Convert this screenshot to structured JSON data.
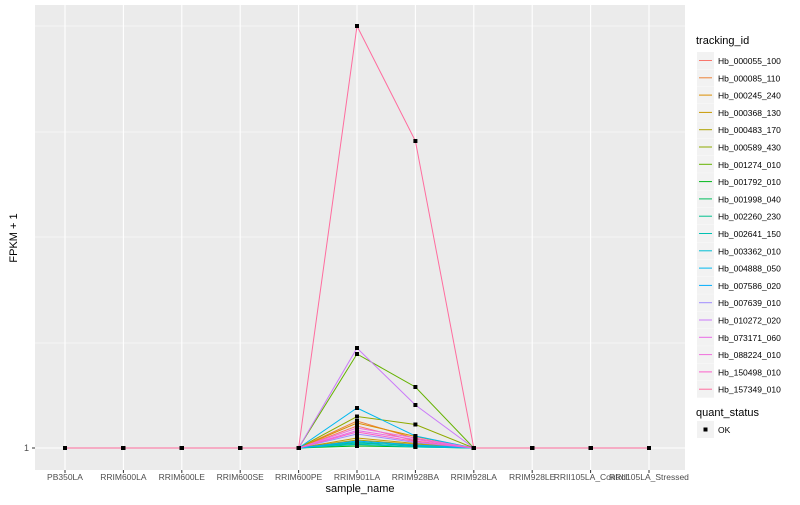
{
  "chart_data": {
    "type": "line",
    "title": "",
    "xlabel": "sample_name",
    "ylabel": "FPKM + 1",
    "y_tick_labels": [
      "1"
    ],
    "ylim": [
      1,
      880
    ],
    "grid": true,
    "legend_position": "right",
    "categories": [
      "PB350LA",
      "RRIM600LA",
      "RRIM600LE",
      "RRIM600SE",
      "RRIM600PE",
      "RRIM901LA",
      "RRIM928BA",
      "RRIM928LA",
      "RRIM928LE",
      "RRII105LA_Control",
      "RRII105LA_Stressed"
    ],
    "legend_title": "tracking_id",
    "series": [
      {
        "name": "Hb_000055_100",
        "color": "#F8766D",
        "values": [
          1,
          1,
          1,
          1,
          1,
          45,
          15,
          1,
          1,
          1,
          1
        ]
      },
      {
        "name": "Hb_000085_110",
        "color": "#EC8239",
        "values": [
          1,
          1,
          1,
          1,
          1,
          55,
          20,
          1,
          1,
          1,
          1
        ]
      },
      {
        "name": "Hb_000245_240",
        "color": "#DB8E00",
        "values": [
          1,
          1,
          1,
          1,
          1,
          51,
          24,
          1,
          1,
          1,
          1
        ]
      },
      {
        "name": "Hb_000368_130",
        "color": "#C79800",
        "values": [
          1,
          1,
          1,
          1,
          1,
          21,
          10,
          1,
          1,
          1,
          1
        ]
      },
      {
        "name": "Hb_000483_170",
        "color": "#AEA200",
        "values": [
          1,
          1,
          1,
          1,
          1,
          17,
          8,
          1,
          1,
          1,
          1
        ]
      },
      {
        "name": "Hb_000589_430",
        "color": "#8FAA00",
        "values": [
          1,
          1,
          1,
          1,
          1,
          64,
          48,
          1,
          1,
          1,
          1
        ]
      },
      {
        "name": "Hb_001274_010",
        "color": "#64B200",
        "values": [
          1,
          1,
          1,
          1,
          1,
          189,
          123,
          1,
          1,
          1,
          1
        ]
      },
      {
        "name": "Hb_001792_010",
        "color": "#00B81B",
        "values": [
          1,
          1,
          1,
          1,
          1,
          5,
          3,
          1,
          1,
          1,
          1
        ]
      },
      {
        "name": "Hb_001998_040",
        "color": "#00BD5C",
        "values": [
          1,
          1,
          1,
          1,
          1,
          8,
          4,
          1,
          1,
          1,
          1
        ]
      },
      {
        "name": "Hb_002260_230",
        "color": "#00C08D",
        "values": [
          1,
          1,
          1,
          1,
          1,
          11,
          6,
          1,
          1,
          1,
          1
        ]
      },
      {
        "name": "Hb_002641_150",
        "color": "#00C1B2",
        "values": [
          1,
          1,
          1,
          1,
          1,
          13,
          5,
          1,
          1,
          1,
          1
        ]
      },
      {
        "name": "Hb_003362_010",
        "color": "#00BFD4",
        "values": [
          1,
          1,
          1,
          1,
          1,
          9,
          3,
          1,
          1,
          1,
          1
        ]
      },
      {
        "name": "Hb_004888_050",
        "color": "#00B8EF",
        "values": [
          1,
          1,
          1,
          1,
          1,
          81,
          25,
          1,
          1,
          1,
          1
        ]
      },
      {
        "name": "Hb_007586_020",
        "color": "#00ACFC",
        "values": [
          1,
          1,
          1,
          1,
          1,
          15,
          7,
          1,
          1,
          1,
          1
        ]
      },
      {
        "name": "Hb_007639_010",
        "color": "#9F8CFF",
        "values": [
          1,
          1,
          1,
          1,
          1,
          29,
          12,
          1,
          1,
          1,
          1
        ]
      },
      {
        "name": "Hb_010272_020",
        "color": "#CA79F9",
        "values": [
          1,
          1,
          1,
          1,
          1,
          201,
          87,
          1,
          1,
          1,
          1
        ]
      },
      {
        "name": "Hb_073171_060",
        "color": "#E96AE6",
        "values": [
          1,
          1,
          1,
          1,
          1,
          36,
          18,
          1,
          1,
          1,
          1
        ]
      },
      {
        "name": "Hb_088224_010",
        "color": "#F06EDC",
        "values": [
          1,
          1,
          1,
          1,
          1,
          41,
          21,
          1,
          1,
          1,
          1
        ]
      },
      {
        "name": "Hb_150498_010",
        "color": "#FC61CA",
        "values": [
          1,
          1,
          1,
          1,
          1,
          33,
          14,
          1,
          1,
          1,
          1
        ]
      },
      {
        "name": "Hb_157349_010",
        "color": "#FF6C9E",
        "values": [
          1,
          1,
          1,
          1,
          1,
          845,
          615,
          1,
          1,
          1,
          1
        ]
      }
    ],
    "shape_legend_title": "quant_status",
    "shape_legend_items": [
      "OK"
    ]
  }
}
